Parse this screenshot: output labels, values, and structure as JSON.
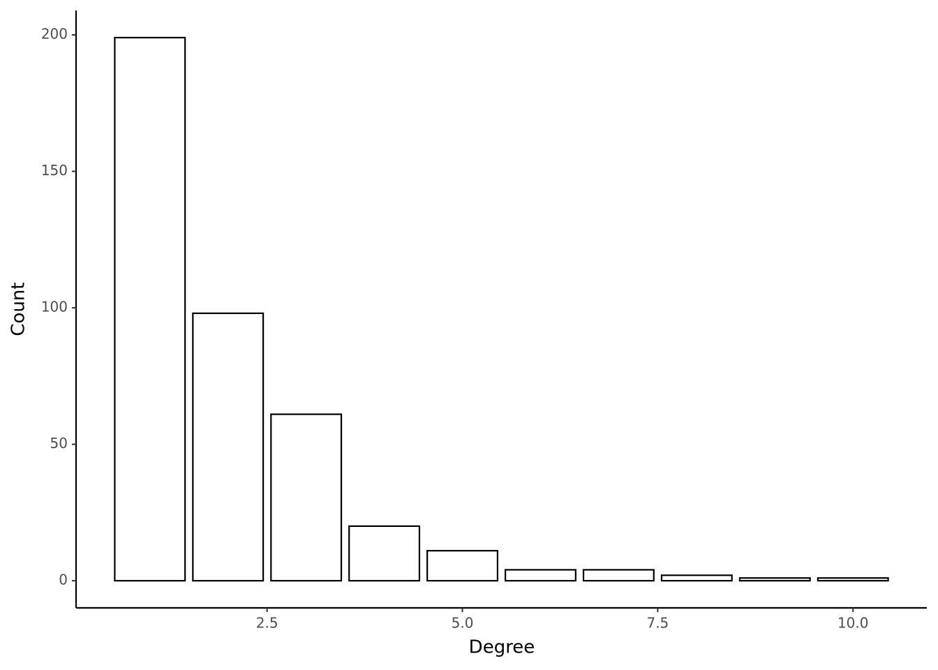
{
  "chart_data": {
    "type": "bar",
    "x_label": "Degree",
    "y_label": "Count",
    "x": [
      1,
      2,
      3,
      4,
      5,
      6,
      7,
      8,
      9,
      10
    ],
    "values": [
      199,
      98,
      61,
      20,
      11,
      4,
      4,
      2,
      1,
      1
    ],
    "color": "#ffffff",
    "edge_color": "#000000",
    "xlim": [
      0.055,
      10.945
    ],
    "xticks": [
      2.5,
      {
        "value": 5,
        "label": "5.0"
      },
      7.5,
      {
        "value": 10,
        "label": "10.0"
      }
    ],
    "ylim": [
      -9.95,
      208.95
    ],
    "yticks": [
      0,
      50,
      100,
      150,
      200
    ],
    "grid": false
  }
}
